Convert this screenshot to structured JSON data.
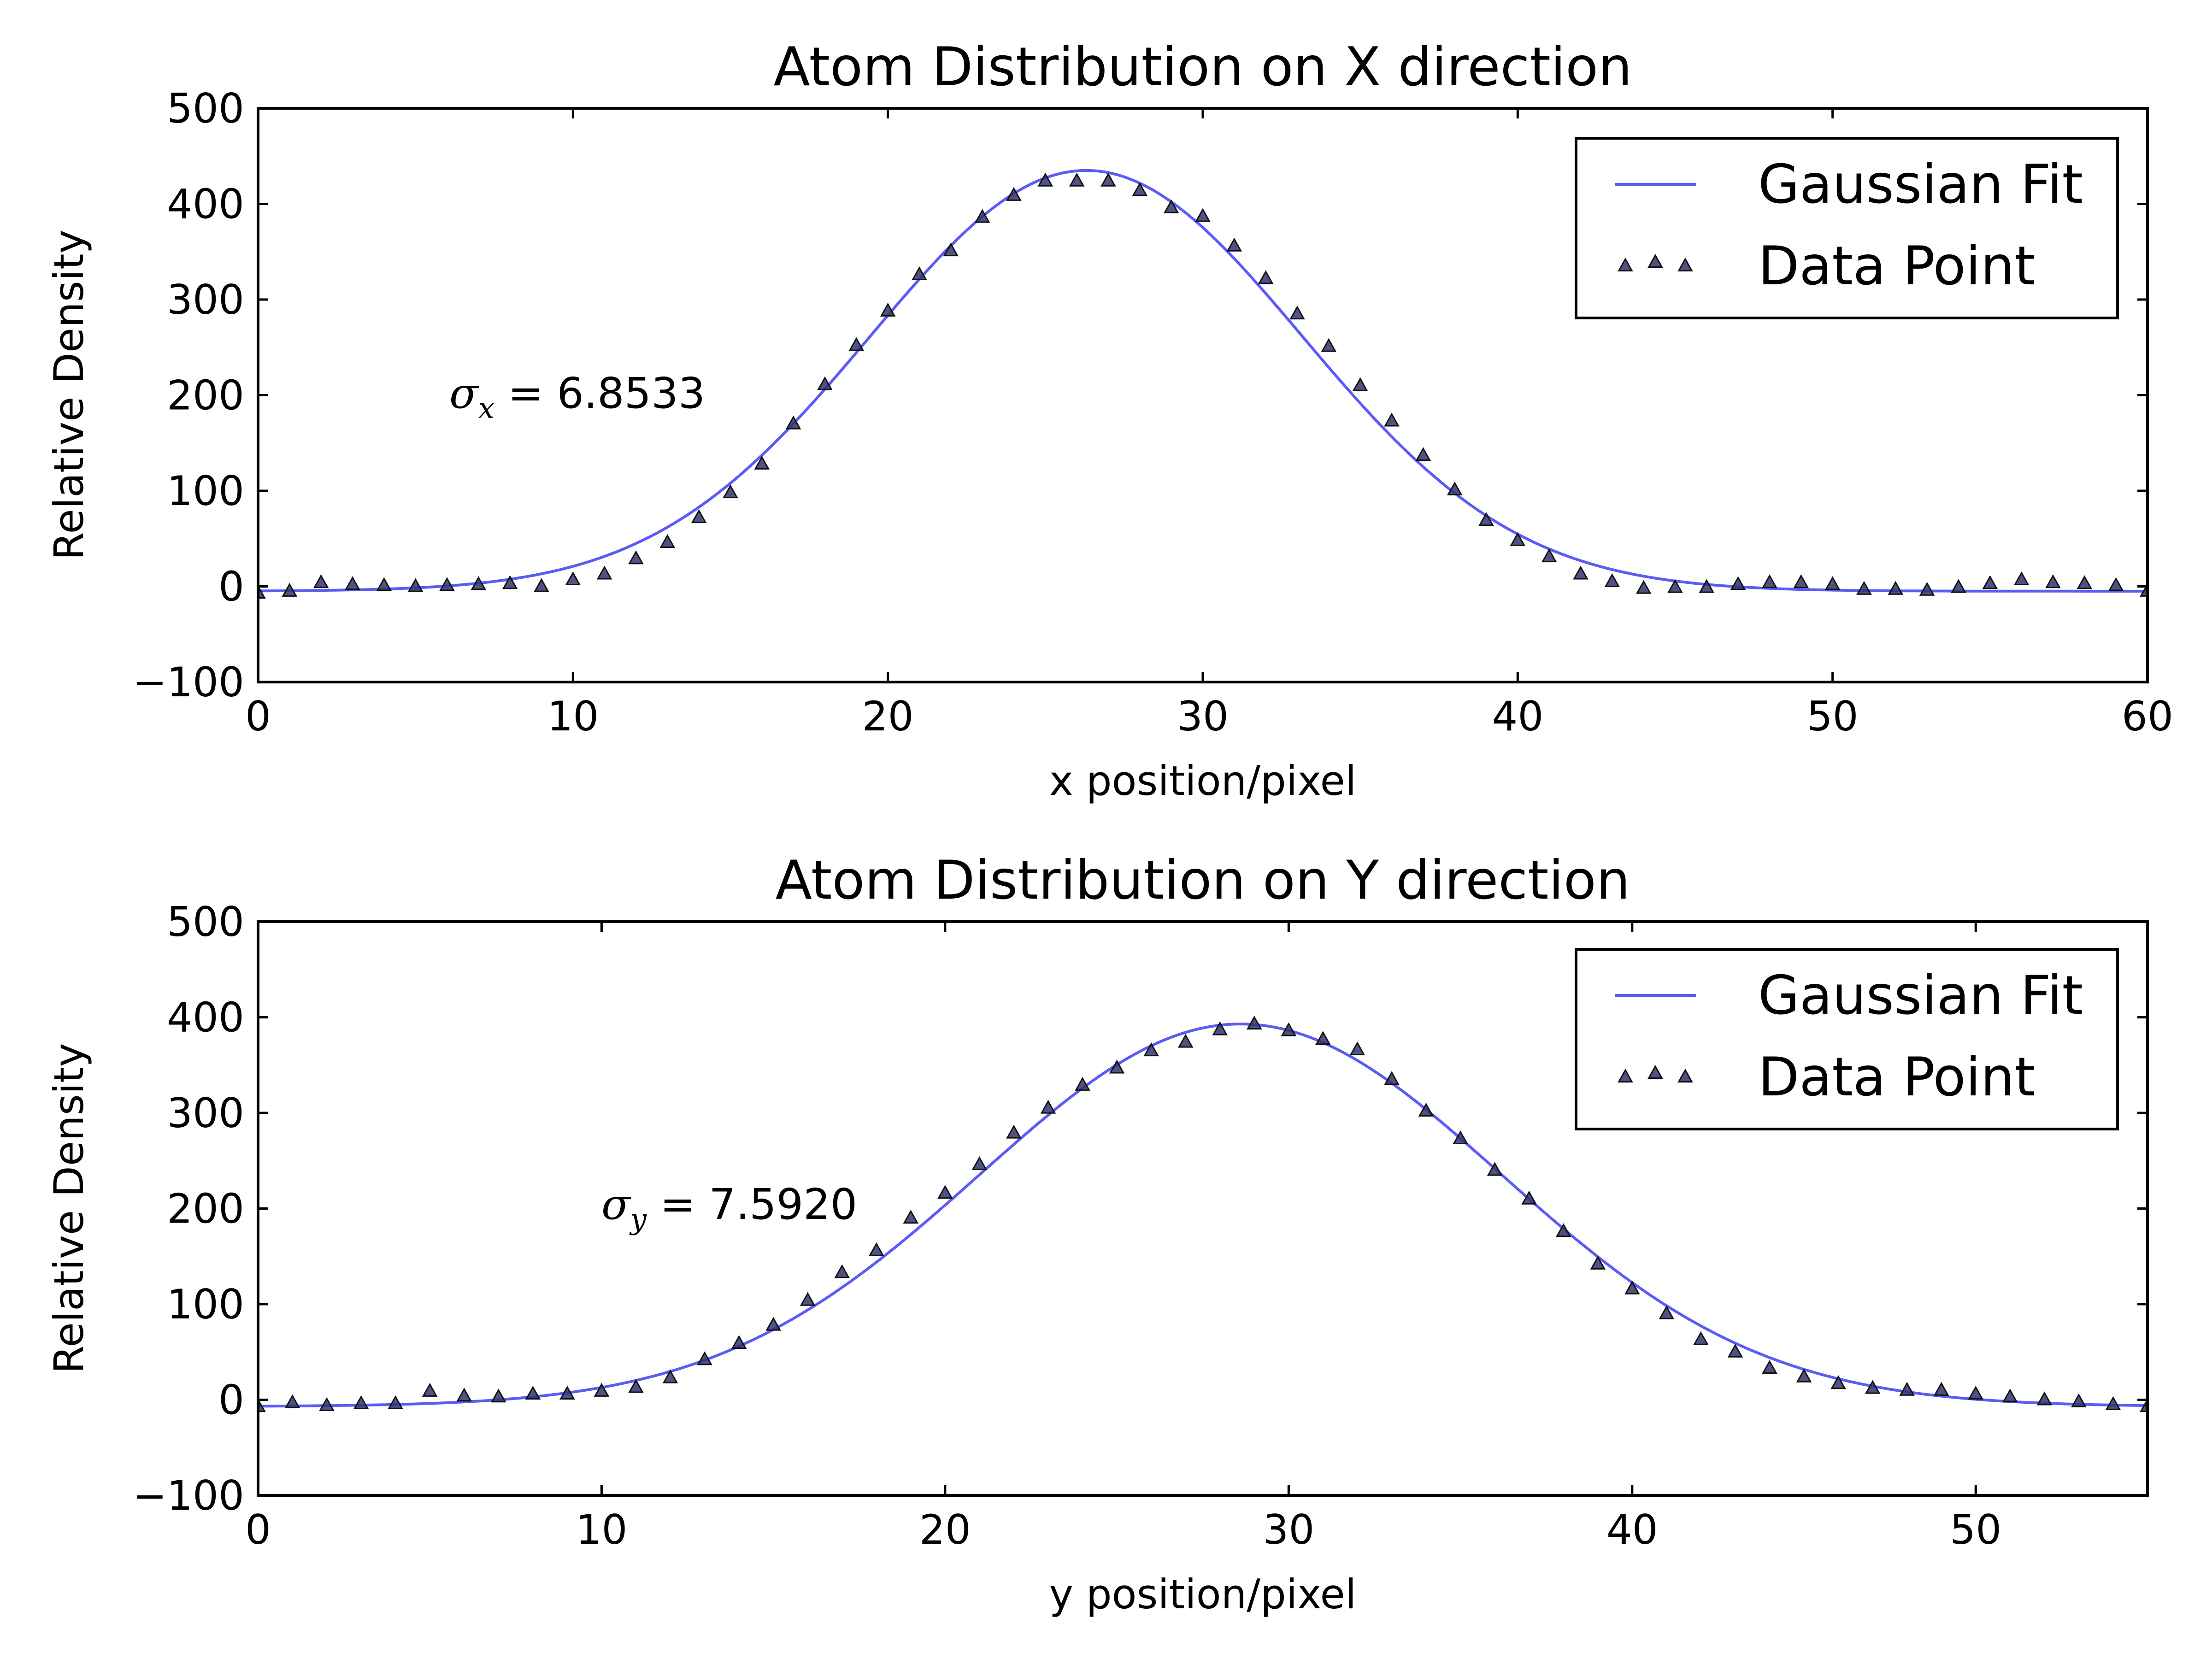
{
  "chart_data": [
    {
      "type": "line+scatter",
      "title": "Atom Distribution on X direction",
      "xlabel": "x position/pixel",
      "ylabel": "Relative Density",
      "xlim": [
        0,
        60
      ],
      "ylim": [
        -100,
        500
      ],
      "xticks": [
        "0",
        "10",
        "20",
        "30",
        "40",
        "50",
        "60"
      ],
      "yticks": [
        "−100",
        "0",
        "100",
        "200",
        "300",
        "400",
        "500"
      ],
      "grid": false,
      "legend": {
        "position": "upper-right",
        "entries": [
          "Gaussian Fit",
          "Data Point"
        ]
      },
      "annotation": {
        "symbol": "σ",
        "subscript": "x",
        "text": " = 6.8533",
        "x": 6,
        "y": 190
      },
      "fit": {
        "amplitude": 440,
        "center": 26.3,
        "sigma": 6.8533,
        "offset": -5
      },
      "series": [
        {
          "name": "Gaussian Fit",
          "kind": "line",
          "color": "#5b5bf5"
        },
        {
          "name": "Data Point",
          "kind": "scatter",
          "color": "#33336e",
          "x": [
            0,
            1,
            2,
            3,
            4,
            5,
            6,
            7,
            8,
            9,
            10,
            11,
            12,
            13,
            14,
            15,
            16,
            17,
            18,
            19,
            20,
            21,
            22,
            23,
            24,
            25,
            26,
            27,
            28,
            29,
            30,
            31,
            32,
            33,
            34,
            35,
            36,
            37,
            38,
            39,
            40,
            41,
            42,
            43,
            44,
            45,
            46,
            47,
            48,
            49,
            50,
            51,
            52,
            53,
            54,
            55,
            56,
            57,
            58,
            59,
            60
          ],
          "y": [
            -7,
            -5,
            4,
            2,
            1,
            0,
            1,
            2,
            3,
            0,
            7,
            13,
            29,
            46,
            72,
            98,
            128,
            170,
            211,
            252,
            288,
            326,
            351,
            386,
            409,
            424,
            424,
            424,
            414,
            396,
            387,
            356,
            322,
            285,
            251,
            210,
            173,
            137,
            101,
            69,
            48,
            31,
            13,
            5,
            -2,
            -1,
            -1,
            2,
            4,
            4,
            2,
            -3,
            -3,
            -4,
            -1,
            3,
            7,
            4,
            3,
            1,
            -5
          ]
        }
      ]
    },
    {
      "type": "line+scatter",
      "title": "Atom Distribution on Y direction",
      "xlabel": "y position/pixel",
      "ylabel": "Relative Density",
      "xlim": [
        0,
        55
      ],
      "ylim": [
        -100,
        500
      ],
      "xticks": [
        "0",
        "10",
        "20",
        "30",
        "40",
        "50"
      ],
      "yticks": [
        "−100",
        "0",
        "100",
        "200",
        "300",
        "400",
        "500"
      ],
      "grid": false,
      "legend": {
        "position": "upper-right",
        "entries": [
          "Gaussian Fit",
          "Data Point"
        ]
      },
      "annotation": {
        "symbol": "σ",
        "subscript": "y",
        "text": " = 7.5920",
        "x": 10,
        "y": 190
      },
      "fit": {
        "amplitude": 400,
        "center": 28.6,
        "sigma": 7.592,
        "offset": -7
      },
      "series": [
        {
          "name": "Gaussian Fit",
          "kind": "line",
          "color": "#5b5bf5"
        },
        {
          "name": "Data Point",
          "kind": "scatter",
          "color": "#33336e",
          "x": [
            0,
            1,
            2,
            3,
            4,
            5,
            6,
            7,
            8,
            9,
            10,
            11,
            12,
            13,
            14,
            15,
            16,
            17,
            18,
            19,
            20,
            21,
            22,
            23,
            24,
            25,
            26,
            27,
            28,
            29,
            30,
            31,
            32,
            33,
            34,
            35,
            36,
            37,
            38,
            39,
            40,
            41,
            42,
            43,
            44,
            45,
            46,
            47,
            48,
            49,
            50,
            51,
            52,
            53,
            54,
            55
          ],
          "y": [
            -7,
            -3,
            -6,
            -4,
            -4,
            9,
            4,
            3,
            6,
            6,
            9,
            13,
            23,
            42,
            59,
            78,
            104,
            133,
            156,
            190,
            216,
            246,
            279,
            305,
            329,
            347,
            365,
            374,
            387,
            393,
            386,
            377,
            366,
            335,
            302,
            273,
            240,
            210,
            176,
            142,
            116,
            90,
            63,
            50,
            33,
            24,
            17,
            12,
            10,
            10,
            6,
            3,
            0,
            -2,
            -5,
            -7
          ]
        }
      ]
    }
  ]
}
